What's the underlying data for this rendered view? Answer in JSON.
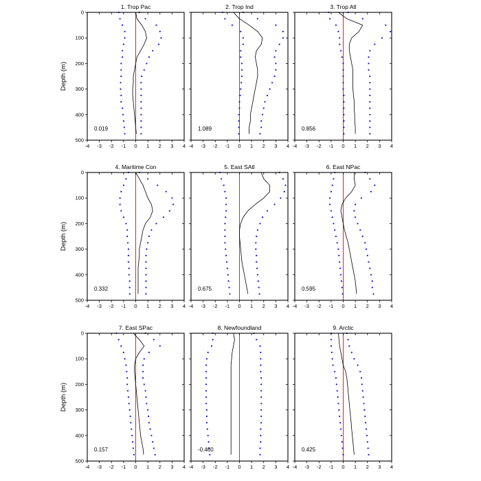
{
  "colors": {
    "mean_line": "#000000",
    "bounds": "#1010e0",
    "zero_line": "#e0202a"
  },
  "chart_data": [
    {
      "type": "line",
      "title": "1. Trop Pac",
      "ylabel": "Depth (m)",
      "xlim": [
        -4,
        4
      ],
      "ylim": [
        0,
        500
      ],
      "yaxis_inverted": true,
      "x_ticks": [
        -4,
        -3,
        -2,
        -1,
        0,
        1,
        2,
        3,
        4
      ],
      "y_ticks": [
        0,
        100,
        200,
        300,
        400,
        500
      ],
      "annotation": "0.019",
      "depth": [
        0,
        25,
        50,
        75,
        100,
        125,
        150,
        175,
        200,
        225,
        250,
        275,
        300,
        325,
        350,
        375,
        400,
        425,
        450,
        475
      ],
      "mean": [
        0,
        0.1,
        0.5,
        0.8,
        0.9,
        0.7,
        0.4,
        0.1,
        0.0,
        -0.1,
        -0.2,
        -0.2,
        -0.25,
        -0.25,
        -0.2,
        -0.15,
        -0.1,
        -0.05,
        0,
        0.05
      ],
      "lower": [
        -1.4,
        -1.3,
        -1.1,
        -0.9,
        -0.9,
        -1.0,
        -1.1,
        -1.1,
        -1.2,
        -1.2,
        -1.2,
        -1.25,
        -1.25,
        -1.2,
        -1.2,
        -1.1,
        -1.05,
        -1.0,
        -0.95,
        -0.9
      ],
      "upper": [
        0.3,
        0.8,
        1.7,
        2.0,
        2.1,
        1.9,
        1.4,
        1.1,
        0.9,
        0.7,
        0.5,
        0.45,
        0.45,
        0.45,
        0.45,
        0.45,
        0.45,
        0.45,
        0.45,
        0.45
      ]
    },
    {
      "type": "line",
      "title": "2. Trop Ind",
      "xlim": [
        -4,
        4
      ],
      "ylim": [
        0,
        500
      ],
      "yaxis_inverted": true,
      "x_ticks": [
        -4,
        -3,
        -2,
        -1,
        0,
        1,
        2,
        3,
        4
      ],
      "y_ticks": [
        0,
        100,
        200,
        300,
        400,
        500
      ],
      "annotation": "1.089",
      "depth": [
        0,
        25,
        50,
        75,
        100,
        125,
        150,
        175,
        200,
        225,
        250,
        275,
        300,
        325,
        350,
        375,
        400,
        425,
        450,
        475
      ],
      "mean": [
        -0.5,
        0.0,
        0.8,
        1.5,
        1.9,
        1.8,
        1.4,
        1.3,
        1.4,
        1.5,
        1.5,
        1.4,
        1.3,
        1.2,
        1.1,
        1.0,
        0.9,
        0.9,
        0.8,
        0.8
      ],
      "lower": [
        -1.4,
        -1.2,
        -0.6,
        0.1,
        0.3,
        0.3,
        0.1,
        0.1,
        0.2,
        0.2,
        0.2,
        0.15,
        0.1,
        0.05,
        0.0,
        0.0,
        -0.05,
        -0.05,
        -0.05,
        -0.05
      ],
      "upper": [
        0.3,
        1.5,
        3.0,
        3.6,
        3.6,
        3.3,
        3.0,
        2.9,
        3.0,
        3.0,
        2.9,
        2.7,
        2.5,
        2.3,
        2.1,
        2.0,
        1.9,
        1.8,
        1.8,
        1.7
      ]
    },
    {
      "type": "line",
      "title": "3. Trop Atl",
      "xlim": [
        -4,
        4
      ],
      "ylim": [
        0,
        500
      ],
      "yaxis_inverted": true,
      "x_ticks": [
        -4,
        -3,
        -2,
        -1,
        0,
        1,
        2,
        3,
        4
      ],
      "y_ticks": [
        0,
        100,
        200,
        300,
        400,
        500
      ],
      "annotation": "0.856",
      "depth": [
        0,
        25,
        50,
        75,
        100,
        125,
        150,
        175,
        200,
        225,
        250,
        275,
        300,
        325,
        350,
        375,
        400,
        425,
        450,
        475
      ],
      "mean": [
        -0.4,
        0.3,
        1.6,
        1.3,
        0.7,
        0.5,
        0.5,
        0.6,
        0.7,
        0.8,
        0.8,
        0.8,
        0.8,
        0.85,
        0.9,
        0.9,
        0.95,
        0.95,
        1.0,
        1.0
      ],
      "lower": [
        -1.2,
        -1.1,
        -0.6,
        -0.4,
        -0.3,
        -0.3,
        -0.2,
        -0.1,
        0.0,
        0.0,
        0.0,
        0.0,
        0.0,
        0.05,
        0.05,
        0.05,
        0.05,
        0.05,
        0.05,
        0.05
      ],
      "upper": [
        0.4,
        1.6,
        3.5,
        3.9,
        3.2,
        2.6,
        2.2,
        2.1,
        2.1,
        2.1,
        2.2,
        2.2,
        2.2,
        2.2,
        2.2,
        2.2,
        2.2,
        2.2,
        2.2,
        2.2
      ]
    },
    {
      "type": "line",
      "title": "4. Maritime Con",
      "ylabel": "Depth (m)",
      "xlim": [
        -4,
        4
      ],
      "ylim": [
        0,
        500
      ],
      "yaxis_inverted": true,
      "x_ticks": [
        -4,
        -3,
        -2,
        -1,
        0,
        1,
        2,
        3,
        4
      ],
      "y_ticks": [
        0,
        100,
        200,
        300,
        400,
        500
      ],
      "annotation": "0.332",
      "depth": [
        0,
        25,
        50,
        75,
        100,
        125,
        150,
        175,
        200,
        225,
        250,
        275,
        300,
        325,
        350,
        375,
        400,
        425,
        450,
        475
      ],
      "mean": [
        0.0,
        0.3,
        0.6,
        0.8,
        1.0,
        1.3,
        1.4,
        1.2,
        0.8,
        0.6,
        0.5,
        0.4,
        0.3,
        0.3,
        0.25,
        0.2,
        0.2,
        0.2,
        0.2,
        0.2
      ],
      "lower": [
        -0.6,
        -0.8,
        -1.0,
        -1.2,
        -1.3,
        -1.3,
        -1.2,
        -1.0,
        -0.8,
        -0.7,
        -0.7,
        -0.65,
        -0.6,
        -0.6,
        -0.6,
        -0.55,
        -0.55,
        -0.5,
        -0.5,
        -0.5
      ],
      "upper": [
        0.3,
        1.0,
        1.8,
        2.5,
        3.0,
        3.1,
        2.8,
        2.3,
        1.7,
        1.3,
        1.1,
        1.0,
        0.9,
        0.85,
        0.85,
        0.85,
        0.85,
        0.85,
        0.85,
        0.85
      ]
    },
    {
      "type": "line",
      "title": "5. East SAtl",
      "xlim": [
        -4,
        4
      ],
      "ylim": [
        0,
        500
      ],
      "yaxis_inverted": true,
      "x_ticks": [
        -4,
        -3,
        -2,
        -1,
        0,
        1,
        2,
        3,
        4
      ],
      "y_ticks": [
        0,
        100,
        200,
        300,
        400,
        500
      ],
      "annotation": "0.675",
      "depth": [
        0,
        25,
        50,
        75,
        100,
        125,
        150,
        175,
        200,
        225,
        250,
        275,
        300,
        325,
        350,
        375,
        400,
        425,
        450,
        475
      ],
      "mean": [
        1.8,
        2.0,
        2.5,
        2.5,
        2.0,
        1.3,
        0.7,
        0.3,
        0.1,
        0.0,
        0.0,
        0.05,
        0.1,
        0.15,
        0.2,
        0.3,
        0.4,
        0.5,
        0.6,
        0.7
      ],
      "lower": [
        -1.6,
        -1.5,
        -1.3,
        -1.2,
        -1.1,
        -1.1,
        -1.1,
        -1.15,
        -1.2,
        -1.2,
        -1.2,
        -1.2,
        -1.15,
        -1.1,
        -1.05,
        -1.0,
        -0.95,
        -0.9,
        -0.85,
        -0.8
      ],
      "upper": [
        3.3,
        3.6,
        3.8,
        3.7,
        3.4,
        2.9,
        2.3,
        1.9,
        1.7,
        1.5,
        1.4,
        1.35,
        1.35,
        1.4,
        1.4,
        1.45,
        1.5,
        1.55,
        1.6,
        1.65
      ]
    },
    {
      "type": "line",
      "title": "6. East NPac",
      "xlim": [
        -4,
        4
      ],
      "ylim": [
        0,
        500
      ],
      "yaxis_inverted": true,
      "x_ticks": [
        -4,
        -3,
        -2,
        -1,
        0,
        1,
        2,
        3,
        4
      ],
      "y_ticks": [
        0,
        100,
        200,
        300,
        400,
        500
      ],
      "annotation": "0.595",
      "depth": [
        0,
        25,
        50,
        75,
        100,
        125,
        150,
        175,
        200,
        225,
        250,
        275,
        300,
        325,
        350,
        375,
        400,
        425,
        450,
        475
      ],
      "mean": [
        0.9,
        0.9,
        1.0,
        0.7,
        0.2,
        -0.1,
        -0.2,
        -0.1,
        0.0,
        0.1,
        0.25,
        0.4,
        0.5,
        0.6,
        0.7,
        0.8,
        0.9,
        1.0,
        1.05,
        1.1
      ],
      "lower": [
        -0.7,
        -0.8,
        -0.9,
        -1.0,
        -1.1,
        -1.1,
        -1.0,
        -0.9,
        -0.8,
        -0.7,
        -0.6,
        -0.5,
        -0.4,
        -0.35,
        -0.3,
        -0.25,
        -0.2,
        -0.15,
        -0.1,
        -0.05
      ],
      "upper": [
        1.8,
        2.2,
        2.6,
        2.3,
        1.5,
        1.0,
        0.9,
        1.0,
        1.2,
        1.4,
        1.6,
        1.8,
        1.9,
        2.0,
        2.1,
        2.2,
        2.3,
        2.4,
        2.4,
        2.5
      ]
    },
    {
      "type": "line",
      "title": "7. East SPac",
      "ylabel": "Depth (m)",
      "xlim": [
        -4,
        4
      ],
      "ylim": [
        0,
        500
      ],
      "yaxis_inverted": true,
      "x_ticks": [
        -4,
        -3,
        -2,
        -1,
        0,
        1,
        2,
        3,
        4
      ],
      "y_ticks": [
        0,
        100,
        200,
        300,
        400,
        500
      ],
      "annotation": "0.157",
      "depth": [
        0,
        25,
        50,
        75,
        100,
        125,
        150,
        175,
        200,
        225,
        250,
        275,
        300,
        325,
        350,
        375,
        400,
        425,
        450,
        475
      ],
      "mean": [
        -0.2,
        0.3,
        0.7,
        0.3,
        0.0,
        -0.1,
        -0.1,
        -0.05,
        0.0,
        0.05,
        0.1,
        0.15,
        0.2,
        0.25,
        0.3,
        0.35,
        0.4,
        0.5,
        0.6,
        0.65
      ],
      "lower": [
        -1.6,
        -1.4,
        -1.2,
        -1.0,
        -0.9,
        -0.8,
        -0.75,
        -0.7,
        -0.7,
        -0.65,
        -0.6,
        -0.55,
        -0.5,
        -0.45,
        -0.4,
        -0.35,
        -0.3,
        -0.25,
        -0.2,
        -0.15
      ],
      "upper": [
        0.8,
        1.5,
        2.0,
        1.1,
        0.7,
        0.6,
        0.6,
        0.6,
        0.7,
        0.8,
        0.85,
        0.9,
        1.0,
        1.05,
        1.1,
        1.2,
        1.3,
        1.4,
        1.5,
        1.6
      ]
    },
    {
      "type": "line",
      "title": "8. Newfoundland",
      "xlim": [
        -4,
        4
      ],
      "ylim": [
        0,
        500
      ],
      "yaxis_inverted": true,
      "x_ticks": [
        -4,
        -3,
        -2,
        -1,
        0,
        1,
        2,
        3,
        4
      ],
      "y_ticks": [
        0,
        100,
        200,
        300,
        400,
        500
      ],
      "annotation": "-0.460",
      "depth": [
        0,
        25,
        50,
        75,
        100,
        125,
        150,
        175,
        200,
        225,
        250,
        275,
        300,
        325,
        350,
        375,
        400,
        425,
        450,
        475
      ],
      "mean": [
        -0.5,
        -0.4,
        -0.5,
        -0.6,
        -0.65,
        -0.7,
        -0.7,
        -0.7,
        -0.7,
        -0.7,
        -0.7,
        -0.7,
        -0.7,
        -0.7,
        -0.7,
        -0.7,
        -0.7,
        -0.7,
        -0.7,
        -0.7
      ],
      "lower": [
        -2.2,
        -2.2,
        -2.3,
        -2.6,
        -2.7,
        -2.75,
        -2.75,
        -2.75,
        -2.75,
        -2.75,
        -2.75,
        -2.75,
        -2.7,
        -2.7,
        -2.7,
        -2.65,
        -2.6,
        -2.55,
        -2.5,
        -2.45
      ],
      "upper": [
        1.2,
        1.4,
        1.7,
        1.75,
        1.75,
        1.75,
        1.75,
        1.8,
        1.8,
        1.8,
        1.8,
        1.8,
        1.8,
        1.8,
        1.8,
        1.75,
        1.75,
        1.75,
        1.7,
        1.7
      ]
    },
    {
      "type": "line",
      "title": "9. Arctic",
      "xlim": [
        -4,
        4
      ],
      "ylim": [
        0,
        500
      ],
      "yaxis_inverted": true,
      "x_ticks": [
        -4,
        -3,
        -2,
        -1,
        0,
        1,
        2,
        3,
        4
      ],
      "y_ticks": [
        0,
        100,
        200,
        300,
        400,
        500
      ],
      "annotation": "0.425",
      "depth": [
        0,
        25,
        50,
        75,
        100,
        125,
        150,
        175,
        200,
        225,
        250,
        275,
        300,
        325,
        350,
        375,
        400,
        425,
        450,
        475
      ],
      "mean": [
        -0.4,
        -0.35,
        -0.3,
        -0.2,
        -0.1,
        0.0,
        0.2,
        0.3,
        0.35,
        0.4,
        0.45,
        0.5,
        0.55,
        0.6,
        0.65,
        0.7,
        0.75,
        0.8,
        0.85,
        0.9
      ],
      "lower": [
        -1.0,
        -1.0,
        -1.0,
        -0.95,
        -0.9,
        -0.85,
        -0.7,
        -0.6,
        -0.55,
        -0.5,
        -0.45,
        -0.4,
        -0.35,
        -0.3,
        -0.25,
        -0.2,
        -0.15,
        -0.1,
        -0.05,
        0.0
      ],
      "upper": [
        0.3,
        0.4,
        0.5,
        0.7,
        0.9,
        1.2,
        1.4,
        1.5,
        1.55,
        1.6,
        1.65,
        1.7,
        1.75,
        1.8,
        1.85,
        1.9,
        1.95,
        2.0,
        2.05,
        2.1
      ]
    }
  ]
}
